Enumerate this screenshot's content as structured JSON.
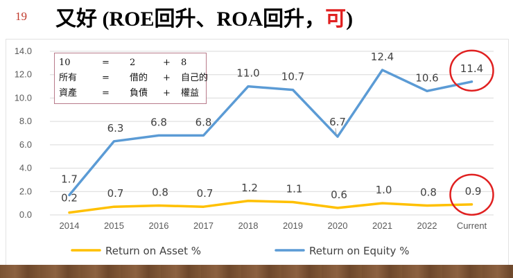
{
  "slide": {
    "number": "19",
    "title_main": "又好 (ROE回升、ROA回升，",
    "title_highlight": "可",
    "title_end": ")"
  },
  "equation_box": {
    "rows": [
      [
        "10",
        "=",
        "2",
        "+",
        "8"
      ],
      [
        "所有",
        "=",
        "借的",
        "+",
        "自己的"
      ],
      [
        "資產",
        "=",
        "負債",
        "+",
        "權益"
      ]
    ]
  },
  "colors": {
    "roa": "#ffc000",
    "roe": "#5b9bd5",
    "highlight_circle": "#e02020",
    "grid": "#d9d9d9"
  },
  "chart_data": {
    "type": "line",
    "categories": [
      "2014",
      "2015",
      "2016",
      "2017",
      "2018",
      "2019",
      "2020",
      "2021",
      "2022",
      "Current"
    ],
    "series": [
      {
        "name": "Return on Asset %",
        "values": [
          0.2,
          0.7,
          0.8,
          0.7,
          1.2,
          1.1,
          0.6,
          1.0,
          0.8,
          0.9
        ],
        "labels": [
          "0.2",
          "0.7",
          "0.8",
          "0.7",
          "1.2",
          "1.1",
          "0.6",
          "1.0",
          "0.8",
          "0.9"
        ]
      },
      {
        "name": "Return on Equity %",
        "values": [
          1.7,
          6.3,
          6.8,
          6.8,
          11.0,
          10.7,
          6.7,
          12.4,
          10.6,
          11.4
        ],
        "labels": [
          "1.7",
          "6.3",
          "6.8",
          "6.8",
          "11.0",
          "10.7",
          "6.7",
          "12.4",
          "10.6",
          "11.4"
        ]
      }
    ],
    "ylim": [
      0,
      14
    ],
    "yticks": [
      "0.0",
      "2.0",
      "4.0",
      "6.0",
      "8.0",
      "10.0",
      "12.0",
      "14.0"
    ],
    "grid": true,
    "legend_position": "bottom",
    "circled": "Current"
  }
}
